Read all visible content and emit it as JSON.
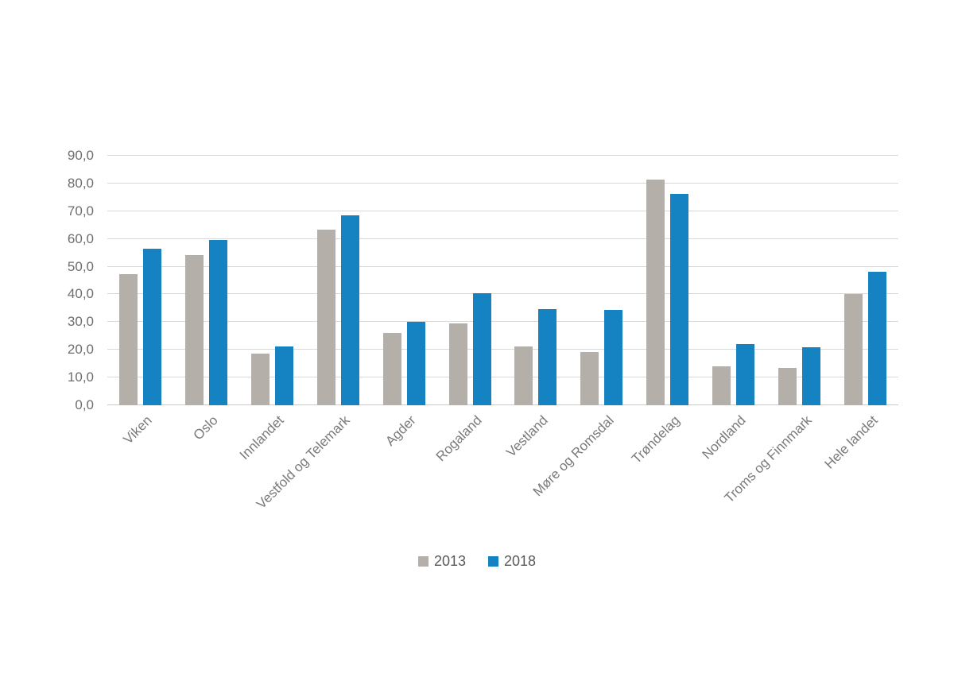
{
  "chart_data": {
    "type": "bar",
    "title": "",
    "categories": [
      "Viken",
      "Oslo",
      "Innlandet",
      "Vestfold og Telemark",
      "Agder",
      "Rogaland",
      "Vestland",
      "Møre og Romsdal",
      "Trøndelag",
      "Nordland",
      "Troms og Finnmark",
      "Hele landet"
    ],
    "series": [
      {
        "name": "2013",
        "color": "#b5afa9",
        "values": [
          47.2,
          54.3,
          18.5,
          63.3,
          26.2,
          29.4,
          21.2,
          19.3,
          81.4,
          14.0,
          13.4,
          40.2
        ]
      },
      {
        "name": "2018",
        "color": "#1583c1",
        "values": [
          56.5,
          59.6,
          21.2,
          68.5,
          30.2,
          40.3,
          34.7,
          34.3,
          76.1,
          22.2,
          20.8,
          48.1
        ]
      }
    ],
    "ylim": [
      0,
      90
    ],
    "ytick_step": 10,
    "ytick_labels": [
      "0,0",
      "10,0",
      "20,0",
      "30,0",
      "40,0",
      "50,0",
      "60,0",
      "70,0",
      "80,0",
      "90,0"
    ],
    "grid": true,
    "legend_position": "bottom",
    "xlabel": "",
    "ylabel": "",
    "colors": {
      "gridline": "#d9d9d9",
      "axis_line": "#c9c9c9",
      "tick_text": "#6e6e6e",
      "category_text": "#7a7a7a",
      "legend_text": "#595959",
      "background": "#ffffff"
    }
  }
}
